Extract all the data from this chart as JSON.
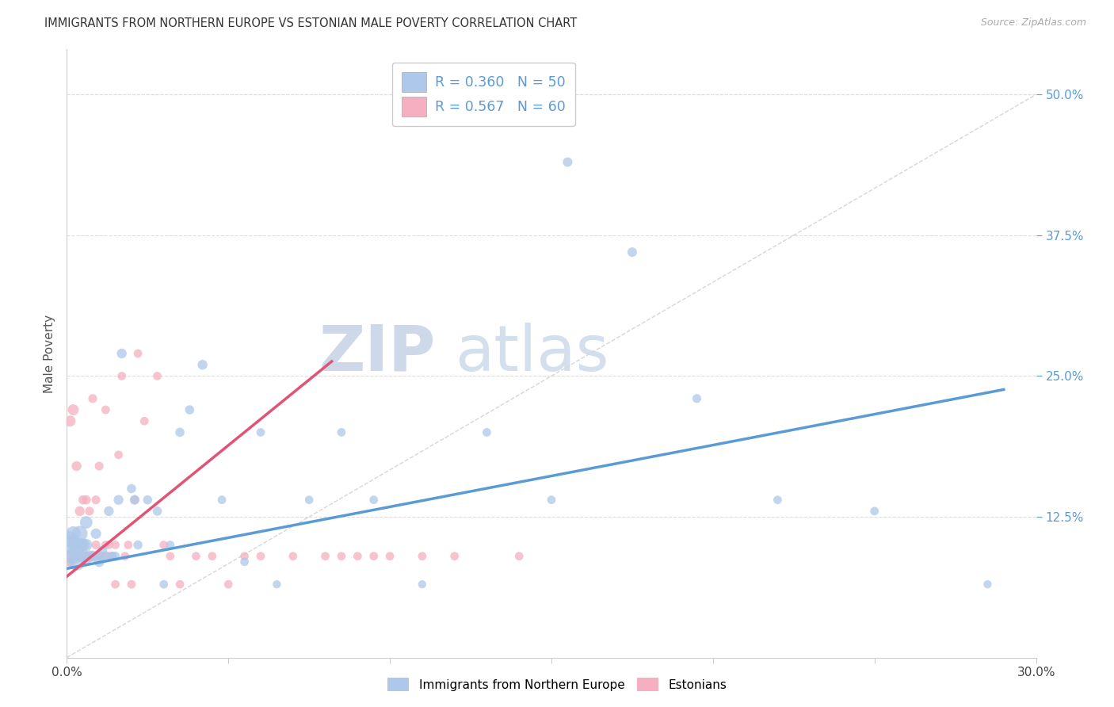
{
  "title": "IMMIGRANTS FROM NORTHERN EUROPE VS ESTONIAN MALE POVERTY CORRELATION CHART",
  "source": "Source: ZipAtlas.com",
  "ylabel": "Male Poverty",
  "ytick_labels": [
    "50.0%",
    "37.5%",
    "25.0%",
    "12.5%"
  ],
  "ytick_values": [
    0.5,
    0.375,
    0.25,
    0.125
  ],
  "xlim": [
    0.0,
    0.3
  ],
  "ylim": [
    0.0,
    0.54
  ],
  "legend_r1": "R = 0.360",
  "legend_n1": "N = 50",
  "legend_r2": "R = 0.567",
  "legend_n2": "N = 60",
  "series1_color": "#adc8ea",
  "series2_color": "#f5afc0",
  "series1_line_color": "#5b9bd5",
  "series2_line_color": "#e05575",
  "legend_text_color": "#5b9bd5",
  "diagonal_line_color": "#cccccc",
  "background_color": "#ffffff",
  "watermark_color": "#cdd9e8",
  "series1_name": "Immigrants from Northern Europe",
  "series2_name": "Estonians",
  "series1_x": [
    0.001,
    0.001,
    0.002,
    0.002,
    0.003,
    0.003,
    0.004,
    0.004,
    0.005,
    0.005,
    0.006,
    0.006,
    0.007,
    0.008,
    0.009,
    0.01,
    0.01,
    0.011,
    0.012,
    0.013,
    0.014,
    0.015,
    0.016,
    0.017,
    0.02,
    0.021,
    0.022,
    0.025,
    0.028,
    0.03,
    0.032,
    0.035,
    0.038,
    0.042,
    0.048,
    0.055,
    0.06,
    0.065,
    0.075,
    0.085,
    0.095,
    0.11,
    0.13,
    0.15,
    0.155,
    0.175,
    0.195,
    0.22,
    0.25,
    0.285
  ],
  "series1_y": [
    0.1,
    0.105,
    0.09,
    0.11,
    0.085,
    0.095,
    0.11,
    0.1,
    0.09,
    0.1,
    0.12,
    0.1,
    0.09,
    0.09,
    0.11,
    0.085,
    0.09,
    0.095,
    0.09,
    0.13,
    0.09,
    0.09,
    0.14,
    0.27,
    0.15,
    0.14,
    0.1,
    0.14,
    0.13,
    0.065,
    0.1,
    0.2,
    0.22,
    0.26,
    0.14,
    0.085,
    0.2,
    0.065,
    0.14,
    0.2,
    0.14,
    0.065,
    0.2,
    0.14,
    0.44,
    0.36,
    0.23,
    0.14,
    0.13,
    0.065
  ],
  "series1_sizes": [
    300,
    220,
    200,
    180,
    250,
    200,
    200,
    160,
    150,
    140,
    130,
    120,
    110,
    100,
    90,
    90,
    80,
    80,
    80,
    80,
    70,
    70,
    80,
    80,
    70,
    80,
    70,
    70,
    70,
    60,
    60,
    70,
    70,
    80,
    60,
    60,
    60,
    55,
    60,
    60,
    60,
    55,
    60,
    60,
    75,
    75,
    65,
    60,
    60,
    55
  ],
  "series2_x": [
    0.001,
    0.001,
    0.001,
    0.002,
    0.002,
    0.002,
    0.003,
    0.003,
    0.003,
    0.004,
    0.004,
    0.004,
    0.005,
    0.005,
    0.005,
    0.006,
    0.006,
    0.006,
    0.007,
    0.007,
    0.008,
    0.008,
    0.009,
    0.009,
    0.01,
    0.01,
    0.011,
    0.012,
    0.012,
    0.013,
    0.013,
    0.014,
    0.015,
    0.015,
    0.016,
    0.017,
    0.018,
    0.019,
    0.02,
    0.021,
    0.022,
    0.024,
    0.028,
    0.03,
    0.032,
    0.035,
    0.04,
    0.045,
    0.05,
    0.055,
    0.06,
    0.07,
    0.08,
    0.085,
    0.09,
    0.095,
    0.1,
    0.11,
    0.12,
    0.14
  ],
  "series2_y": [
    0.09,
    0.21,
    0.085,
    0.22,
    0.1,
    0.105,
    0.09,
    0.17,
    0.1,
    0.1,
    0.13,
    0.09,
    0.14,
    0.09,
    0.1,
    0.09,
    0.14,
    0.085,
    0.09,
    0.13,
    0.09,
    0.23,
    0.14,
    0.1,
    0.09,
    0.17,
    0.09,
    0.1,
    0.22,
    0.09,
    0.1,
    0.09,
    0.065,
    0.1,
    0.18,
    0.25,
    0.09,
    0.1,
    0.065,
    0.14,
    0.27,
    0.21,
    0.25,
    0.1,
    0.09,
    0.065,
    0.09,
    0.09,
    0.065,
    0.09,
    0.09,
    0.09,
    0.09,
    0.09,
    0.09,
    0.09,
    0.09,
    0.09,
    0.09,
    0.09
  ],
  "series2_sizes": [
    150,
    100,
    80,
    100,
    80,
    80,
    80,
    80,
    80,
    80,
    80,
    70,
    70,
    70,
    70,
    70,
    70,
    70,
    65,
    65,
    65,
    65,
    65,
    65,
    65,
    65,
    60,
    60,
    60,
    60,
    60,
    60,
    60,
    60,
    60,
    60,
    60,
    60,
    60,
    60,
    60,
    60,
    60,
    60,
    60,
    60,
    60,
    60,
    60,
    60,
    60,
    60,
    60,
    60,
    60,
    60,
    60,
    60,
    60,
    60
  ],
  "trend1_x_start": 0.0,
  "trend1_x_end": 0.29,
  "trend1_y_start": 0.079,
  "trend1_y_end": 0.238,
  "trend2_x_start": 0.0,
  "trend2_x_end": 0.082,
  "trend2_y_start": 0.072,
  "trend2_y_end": 0.263
}
